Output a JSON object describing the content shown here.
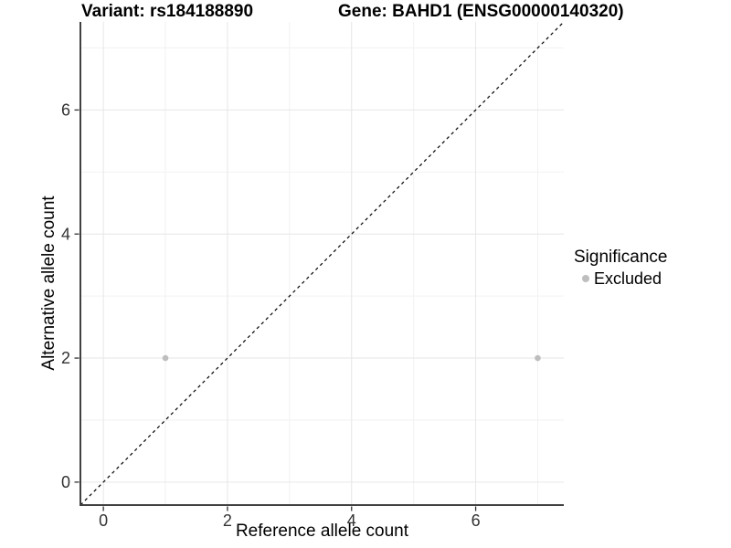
{
  "chart_data": {
    "type": "scatter",
    "title_left": "Variant: rs184188890",
    "title_right": "Gene: BAHD1 (ENSG00000140320)",
    "xlabel": "Reference allele count",
    "ylabel": "Alternative allele count",
    "xlim": [
      -0.37,
      7.42
    ],
    "ylim": [
      -0.37,
      7.42
    ],
    "x_ticks": [
      0,
      2,
      4,
      6
    ],
    "y_ticks": [
      0,
      2,
      4,
      6
    ],
    "x_minor_gridlines": [
      1,
      3,
      5,
      7
    ],
    "y_minor_gridlines": [
      1,
      3,
      5,
      7
    ],
    "grid": "major and minor gridlines, light gray on white panel",
    "points": [
      {
        "x": 1,
        "y": 2,
        "significance": "Excluded"
      },
      {
        "x": 7,
        "y": 2,
        "significance": "Excluded"
      }
    ],
    "identity_line": {
      "slope": 1,
      "intercept": 0,
      "style": "dashed",
      "color": "#000000"
    },
    "legend": {
      "title": "Significance",
      "position": "right",
      "items": [
        {
          "label": "Excluded",
          "color": "#bebebe"
        }
      ]
    },
    "colors": {
      "background": "#ffffff",
      "point": "#bebebe",
      "axis_line": "#404040",
      "tick_mark": "#333333",
      "tick_label": "#333333",
      "grid_major": "#e6e6e6",
      "grid_minor": "#f2f2f2"
    }
  }
}
